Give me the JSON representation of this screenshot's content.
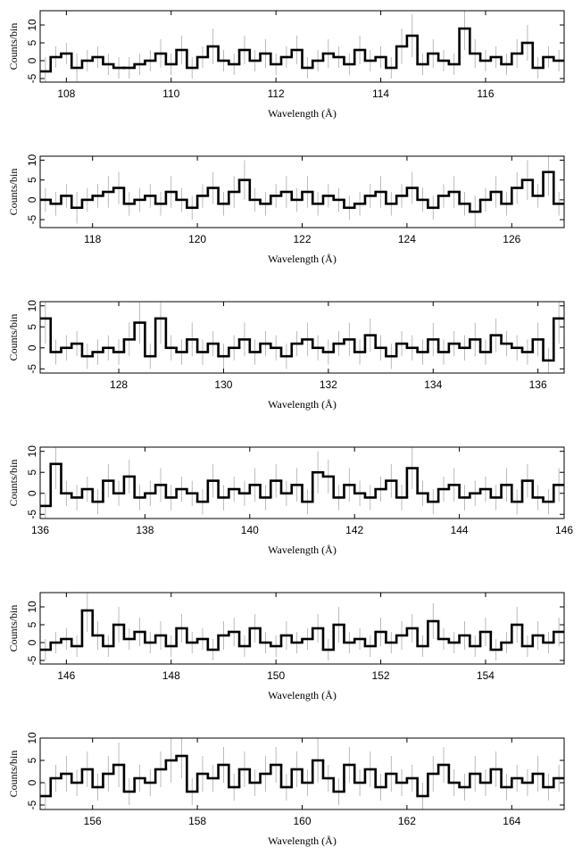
{
  "chart_data": [
    {
      "type": "step",
      "xlabel": "Wavelength (Å)",
      "ylabel": "Counts/bin",
      "xlim": [
        107.5,
        117.5
      ],
      "ylim": [
        -6,
        14
      ],
      "xticks": [
        108,
        110,
        112,
        114,
        116
      ],
      "yticks": [
        -5,
        0,
        5,
        10
      ],
      "color": "#000000",
      "error_color": "#aaaaaa",
      "x": [
        107.6,
        107.8,
        108.0,
        108.2,
        108.4,
        108.6,
        108.8,
        109.0,
        109.2,
        109.4,
        109.6,
        109.8,
        110.0,
        110.2,
        110.4,
        110.6,
        110.8,
        111.0,
        111.2,
        111.4,
        111.6,
        111.8,
        112.0,
        112.2,
        112.4,
        112.6,
        112.8,
        113.0,
        113.2,
        113.4,
        113.6,
        113.8,
        114.0,
        114.2,
        114.4,
        114.6,
        114.8,
        115.0,
        115.2,
        115.4,
        115.6,
        115.8,
        116.0,
        116.2,
        116.4,
        116.6,
        116.8,
        117.0,
        117.2,
        117.4
      ],
      "values": [
        -3,
        1,
        2,
        -2,
        0,
        1,
        -1,
        -2,
        -2,
        -1,
        0,
        2,
        -1,
        3,
        -2,
        1,
        4,
        0,
        -1,
        3,
        0,
        2,
        -1,
        1,
        3,
        -2,
        0,
        2,
        1,
        -1,
        3,
        0,
        1,
        -2,
        4,
        7,
        -1,
        2,
        0,
        -1,
        9,
        2,
        0,
        1,
        -1,
        2,
        5,
        -2,
        1,
        0
      ],
      "errors": [
        4,
        3,
        3,
        4,
        3,
        3,
        3,
        3,
        3,
        3,
        3,
        4,
        3,
        4,
        3,
        3,
        5,
        3,
        3,
        4,
        3,
        4,
        3,
        3,
        4,
        3,
        3,
        4,
        3,
        3,
        4,
        3,
        3,
        3,
        5,
        6,
        3,
        4,
        3,
        3,
        6,
        4,
        3,
        3,
        3,
        4,
        5,
        3,
        3,
        3
      ]
    },
    {
      "type": "step",
      "xlabel": "Wavelength (Å)",
      "ylabel": "Counts/bin",
      "xlim": [
        117,
        127
      ],
      "ylim": [
        -7,
        11
      ],
      "xticks": [
        118,
        120,
        122,
        124,
        126
      ],
      "yticks": [
        -5,
        0,
        5,
        10
      ],
      "color": "#000000",
      "error_color": "#aaaaaa",
      "x": [
        117.1,
        117.3,
        117.5,
        117.7,
        117.9,
        118.1,
        118.3,
        118.5,
        118.7,
        118.9,
        119.1,
        119.3,
        119.5,
        119.7,
        119.9,
        120.1,
        120.3,
        120.5,
        120.7,
        120.9,
        121.1,
        121.3,
        121.5,
        121.7,
        121.9,
        122.1,
        122.3,
        122.5,
        122.7,
        122.9,
        123.1,
        123.3,
        123.5,
        123.7,
        123.9,
        124.1,
        124.3,
        124.5,
        124.7,
        124.9,
        125.1,
        125.3,
        125.5,
        125.7,
        125.9,
        126.1,
        126.3,
        126.5,
        126.7,
        126.9
      ],
      "values": [
        0,
        -1,
        1,
        -2,
        0,
        1,
        2,
        3,
        -1,
        0,
        1,
        -1,
        2,
        0,
        -2,
        1,
        3,
        -1,
        2,
        5,
        0,
        -1,
        1,
        2,
        0,
        2,
        -1,
        1,
        0,
        -2,
        -1,
        1,
        2,
        -1,
        1,
        3,
        0,
        -2,
        1,
        2,
        -1,
        -3,
        0,
        2,
        -1,
        3,
        5,
        1,
        7,
        -1
      ],
      "errors": [
        3,
        3,
        3,
        4,
        3,
        3,
        4,
        4,
        3,
        3,
        3,
        3,
        4,
        3,
        3,
        3,
        4,
        3,
        4,
        5,
        3,
        3,
        3,
        4,
        3,
        4,
        3,
        3,
        3,
        3,
        3,
        3,
        4,
        3,
        3,
        4,
        3,
        3,
        3,
        4,
        3,
        4,
        3,
        4,
        3,
        4,
        5,
        3,
        6,
        3
      ]
    },
    {
      "type": "step",
      "xlabel": "Wavelength (Å)",
      "ylabel": "Counts/bin",
      "xlim": [
        126.5,
        136.5
      ],
      "ylim": [
        -6,
        11
      ],
      "xticks": [
        128,
        130,
        132,
        134,
        136
      ],
      "yticks": [
        -5,
        0,
        5,
        10
      ],
      "color": "#000000",
      "error_color": "#aaaaaa",
      "x": [
        126.6,
        126.8,
        127.0,
        127.2,
        127.4,
        127.6,
        127.8,
        128.0,
        128.2,
        128.4,
        128.6,
        128.8,
        129.0,
        129.2,
        129.4,
        129.6,
        129.8,
        130.0,
        130.2,
        130.4,
        130.6,
        130.8,
        131.0,
        131.2,
        131.4,
        131.6,
        131.8,
        132.0,
        132.2,
        132.4,
        132.6,
        132.8,
        133.0,
        133.2,
        133.4,
        133.6,
        133.8,
        134.0,
        134.2,
        134.4,
        134.6,
        134.8,
        135.0,
        135.2,
        135.4,
        135.6,
        135.8,
        136.0,
        136.2,
        136.4
      ],
      "values": [
        7,
        -1,
        0,
        1,
        -2,
        -1,
        0,
        -1,
        2,
        6,
        -2,
        7,
        0,
        -1,
        2,
        -1,
        1,
        -2,
        0,
        2,
        -1,
        1,
        0,
        -2,
        1,
        2,
        0,
        -1,
        1,
        2,
        -1,
        3,
        0,
        -2,
        1,
        0,
        -1,
        2,
        -1,
        1,
        0,
        2,
        -1,
        3,
        1,
        0,
        -1,
        2,
        -3,
        7
      ],
      "errors": [
        6,
        3,
        3,
        3,
        3,
        3,
        3,
        3,
        4,
        5,
        3,
        6,
        3,
        3,
        4,
        3,
        3,
        3,
        3,
        4,
        3,
        3,
        3,
        3,
        3,
        4,
        3,
        3,
        3,
        4,
        3,
        4,
        3,
        3,
        3,
        3,
        3,
        4,
        3,
        3,
        3,
        4,
        3,
        4,
        3,
        3,
        3,
        4,
        3,
        6
      ]
    },
    {
      "type": "step",
      "xlabel": "Wavelength (Å)",
      "ylabel": "Counts/bin",
      "xlim": [
        136,
        146
      ],
      "ylim": [
        -6,
        11
      ],
      "xticks": [
        136,
        138,
        140,
        142,
        144,
        146
      ],
      "yticks": [
        -5,
        0,
        5,
        10
      ],
      "color": "#000000",
      "error_color": "#aaaaaa",
      "x": [
        136.1,
        136.3,
        136.5,
        136.7,
        136.9,
        137.1,
        137.3,
        137.5,
        137.7,
        137.9,
        138.1,
        138.3,
        138.5,
        138.7,
        138.9,
        139.1,
        139.3,
        139.5,
        139.7,
        139.9,
        140.1,
        140.3,
        140.5,
        140.7,
        140.9,
        141.1,
        141.3,
        141.5,
        141.7,
        141.9,
        142.1,
        142.3,
        142.5,
        142.7,
        142.9,
        143.1,
        143.3,
        143.5,
        143.7,
        143.9,
        144.1,
        144.3,
        144.5,
        144.7,
        144.9,
        145.1,
        145.3,
        145.5,
        145.7,
        145.9
      ],
      "values": [
        -3,
        7,
        0,
        -1,
        1,
        -2,
        3,
        0,
        4,
        -1,
        0,
        2,
        -1,
        1,
        0,
        -2,
        3,
        -1,
        1,
        0,
        2,
        -1,
        3,
        0,
        2,
        -2,
        5,
        4,
        -1,
        2,
        0,
        -1,
        1,
        3,
        -1,
        6,
        0,
        -2,
        1,
        2,
        -1,
        0,
        1,
        -1,
        2,
        -2,
        3,
        -1,
        -2,
        2
      ],
      "errors": [
        3,
        6,
        3,
        3,
        3,
        3,
        4,
        3,
        4,
        3,
        3,
        4,
        3,
        3,
        3,
        3,
        4,
        3,
        3,
        3,
        4,
        3,
        4,
        3,
        4,
        3,
        5,
        4,
        3,
        4,
        3,
        3,
        3,
        4,
        3,
        5,
        3,
        3,
        3,
        4,
        3,
        3,
        3,
        3,
        4,
        3,
        4,
        3,
        3,
        4
      ]
    },
    {
      "type": "step",
      "xlabel": "Wavelength (Å)",
      "ylabel": "Counts/bin",
      "xlim": [
        145.5,
        155.5
      ],
      "ylim": [
        -6,
        14
      ],
      "xticks": [
        146,
        148,
        150,
        152,
        154
      ],
      "yticks": [
        -5,
        0,
        5,
        10
      ],
      "color": "#000000",
      "error_color": "#aaaaaa",
      "x": [
        145.6,
        145.8,
        146.0,
        146.2,
        146.4,
        146.6,
        146.8,
        147.0,
        147.2,
        147.4,
        147.6,
        147.8,
        148.0,
        148.2,
        148.4,
        148.6,
        148.8,
        149.0,
        149.2,
        149.4,
        149.6,
        149.8,
        150.0,
        150.2,
        150.4,
        150.6,
        150.8,
        151.0,
        151.2,
        151.4,
        151.6,
        151.8,
        152.0,
        152.2,
        152.4,
        152.6,
        152.8,
        153.0,
        153.2,
        153.4,
        153.6,
        153.8,
        154.0,
        154.2,
        154.4,
        154.6,
        154.8,
        155.0,
        155.2,
        155.4
      ],
      "values": [
        -2,
        0,
        1,
        -1,
        9,
        2,
        -1,
        5,
        1,
        3,
        0,
        2,
        -1,
        4,
        0,
        1,
        -2,
        2,
        3,
        -1,
        4,
        0,
        -1,
        2,
        0,
        1,
        4,
        -2,
        5,
        0,
        1,
        -1,
        3,
        0,
        2,
        4,
        -1,
        6,
        1,
        0,
        2,
        -1,
        3,
        -2,
        0,
        5,
        -1,
        2,
        0,
        3
      ],
      "errors": [
        3,
        3,
        3,
        3,
        6,
        4,
        3,
        5,
        3,
        4,
        3,
        4,
        3,
        4,
        3,
        3,
        3,
        4,
        4,
        3,
        4,
        3,
        3,
        4,
        3,
        3,
        4,
        3,
        5,
        3,
        3,
        3,
        4,
        3,
        4,
        4,
        3,
        5,
        3,
        3,
        4,
        3,
        4,
        3,
        3,
        5,
        3,
        4,
        3,
        4
      ]
    },
    {
      "type": "step",
      "xlabel": "Wavelength (Å)",
      "ylabel": "Counts/bin",
      "xlim": [
        155,
        165
      ],
      "ylim": [
        -6,
        10
      ],
      "xticks": [
        156,
        158,
        160,
        162,
        164
      ],
      "yticks": [
        -5,
        0,
        5,
        10
      ],
      "color": "#000000",
      "error_color": "#aaaaaa",
      "x": [
        155.1,
        155.3,
        155.5,
        155.7,
        155.9,
        156.1,
        156.3,
        156.5,
        156.7,
        156.9,
        157.1,
        157.3,
        157.5,
        157.7,
        157.9,
        158.1,
        158.3,
        158.5,
        158.7,
        158.9,
        159.1,
        159.3,
        159.5,
        159.7,
        159.9,
        160.1,
        160.3,
        160.5,
        160.7,
        160.9,
        161.1,
        161.3,
        161.5,
        161.7,
        161.9,
        162.1,
        162.3,
        162.5,
        162.7,
        162.9,
        163.1,
        163.3,
        163.5,
        163.7,
        163.9,
        164.1,
        164.3,
        164.5,
        164.7,
        164.9
      ],
      "values": [
        -3,
        1,
        2,
        0,
        3,
        -1,
        2,
        4,
        -2,
        1,
        0,
        3,
        5,
        6,
        -2,
        2,
        1,
        4,
        -1,
        3,
        0,
        2,
        4,
        -1,
        3,
        0,
        5,
        1,
        -2,
        4,
        0,
        3,
        -1,
        2,
        0,
        1,
        -3,
        2,
        4,
        0,
        -1,
        2,
        0,
        3,
        -1,
        1,
        0,
        2,
        -1,
        1
      ],
      "errors": [
        3,
        3,
        4,
        3,
        4,
        3,
        4,
        5,
        3,
        3,
        3,
        4,
        5,
        5,
        3,
        4,
        3,
        4,
        3,
        4,
        3,
        4,
        4,
        3,
        4,
        3,
        5,
        3,
        3,
        4,
        3,
        4,
        3,
        4,
        3,
        3,
        3,
        4,
        4,
        3,
        3,
        4,
        3,
        4,
        3,
        3,
        3,
        4,
        3,
        3
      ]
    }
  ]
}
